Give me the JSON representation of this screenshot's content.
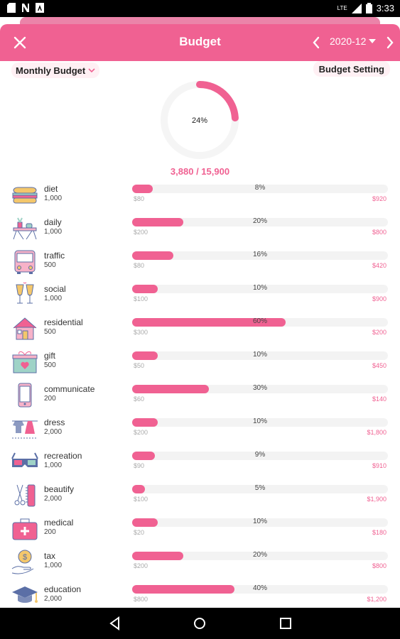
{
  "status_bar": {
    "time": "3:33",
    "signal": "LTE"
  },
  "app_bar": {
    "title": "Budget",
    "month": "2020-12"
  },
  "filters": {
    "budget_type": "Monthly Budget",
    "setting_label": "Budget Setting"
  },
  "summary": {
    "percent_label": "24%",
    "percent_value": 0.24,
    "totals": "3,880 / 15,900"
  },
  "colors": {
    "accent": "#f06192",
    "track": "#f3f3f3"
  },
  "categories": [
    {
      "name": "diet",
      "amount": "1,000",
      "percent": "8%",
      "fraction": 0.08,
      "spent": "$80",
      "remaining": "$920",
      "icon": "burger-icon"
    },
    {
      "name": "daily",
      "amount": "1,000",
      "percent": "20%",
      "fraction": 0.2,
      "spent": "$200",
      "remaining": "$800",
      "icon": "table-plant-icon"
    },
    {
      "name": "traffic",
      "amount": "500",
      "percent": "16%",
      "fraction": 0.16,
      "spent": "$80",
      "remaining": "$420",
      "icon": "bus-icon"
    },
    {
      "name": "social",
      "amount": "1,000",
      "percent": "10%",
      "fraction": 0.1,
      "spent": "$100",
      "remaining": "$900",
      "icon": "wine-glasses-icon"
    },
    {
      "name": "residential",
      "amount": "500",
      "percent": "60%",
      "fraction": 0.6,
      "spent": "$300",
      "remaining": "$200",
      "icon": "house-icon"
    },
    {
      "name": "gift",
      "amount": "500",
      "percent": "10%",
      "fraction": 0.1,
      "spent": "$50",
      "remaining": "$450",
      "icon": "gift-box-icon"
    },
    {
      "name": "communicate",
      "amount": "200",
      "percent": "30%",
      "fraction": 0.3,
      "spent": "$60",
      "remaining": "$140",
      "icon": "phone-icon"
    },
    {
      "name": "dress",
      "amount": "2,000",
      "percent": "10%",
      "fraction": 0.1,
      "spent": "$200",
      "remaining": "$1,800",
      "icon": "clothesline-icon"
    },
    {
      "name": "recreation",
      "amount": "1,000",
      "percent": "9%",
      "fraction": 0.09,
      "spent": "$90",
      "remaining": "$910",
      "icon": "3d-glasses-icon"
    },
    {
      "name": "beautify",
      "amount": "2,000",
      "percent": "5%",
      "fraction": 0.05,
      "spent": "$100",
      "remaining": "$1,900",
      "icon": "scissors-comb-icon"
    },
    {
      "name": "medical",
      "amount": "200",
      "percent": "10%",
      "fraction": 0.1,
      "spent": "$20",
      "remaining": "$180",
      "icon": "medical-kit-icon"
    },
    {
      "name": "tax",
      "amount": "1,000",
      "percent": "20%",
      "fraction": 0.2,
      "spent": "$200",
      "remaining": "$800",
      "icon": "coin-hand-icon"
    },
    {
      "name": "education",
      "amount": "2,000",
      "percent": "40%",
      "fraction": 0.4,
      "spent": "$800",
      "remaining": "$1,200",
      "icon": "graduation-cap-icon"
    }
  ]
}
